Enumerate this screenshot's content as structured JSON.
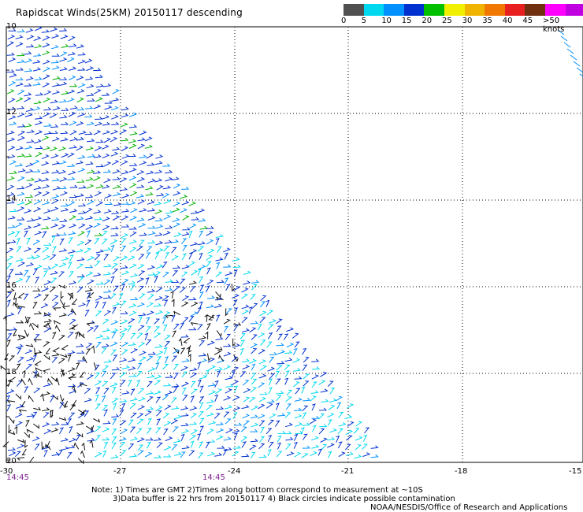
{
  "title": "Rapidscat Winds(25KM) 20150117 descending",
  "scale": {
    "colors": [
      "#505050",
      "#00d8f0",
      "#0090ff",
      "#0030d0",
      "#00c000",
      "#f0f000",
      "#f0b400",
      "#f07800",
      "#e82020",
      "#703010",
      "#ff00ff",
      "#c000e0",
      "#7000a8"
    ],
    "ticks": [
      "0",
      "5",
      "10",
      "15",
      "20",
      "25",
      "30",
      "35",
      "40",
      "45",
      ">50 knots"
    ]
  },
  "map": {
    "lat_labels": [
      "10",
      "12",
      "14",
      "16",
      "18",
      "20"
    ],
    "lon_labels": [
      "-30",
      "-27",
      "-24",
      "-21",
      "-18",
      "-15"
    ],
    "time_labels": [
      "14:45",
      "14:45"
    ]
  },
  "notes": {
    "line1": "Note: 1) Times are GMT 2)Times along bottom correspond to measurement at ~10S",
    "line2": "3)Data buffer is 22 hrs from 20150117 4) Black circles indicate possible contamination",
    "line3": "NOAA/NESDIS/Office of Research and Applications"
  }
}
